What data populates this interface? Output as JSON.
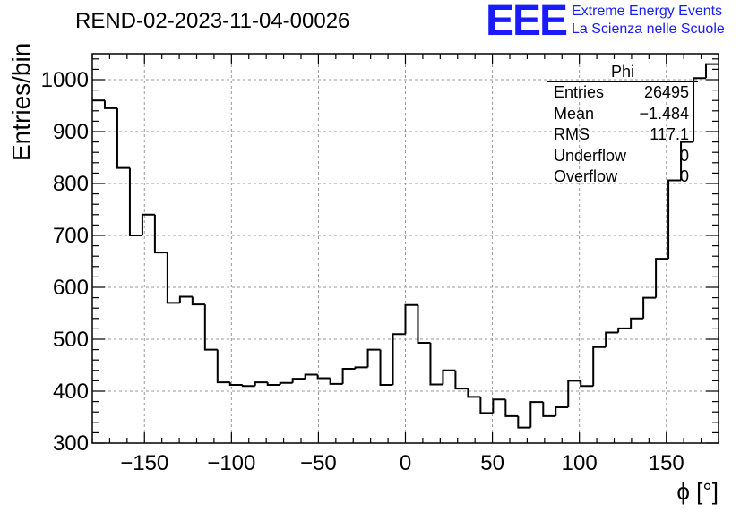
{
  "title": "REND-02-2023-11-04-00026",
  "logo": {
    "mark": "EEE",
    "line1": "Extreme Energy Events",
    "line2": "La Scienza nelle Scuole"
  },
  "stats": {
    "name": "Phi",
    "rows": [
      {
        "label": "Entries",
        "value": "26495"
      },
      {
        "label": "Mean",
        "value": "−1.484"
      },
      {
        "label": "RMS",
        "value": "117.1"
      },
      {
        "label": "Underflow",
        "value": "0"
      },
      {
        "label": "Overflow",
        "value": "0"
      }
    ]
  },
  "chart_data": {
    "type": "bar",
    "style": "step-histogram",
    "xlabel": "ϕ [°]",
    "ylabel": "Entries/bin",
    "xlim": [
      -180,
      180
    ],
    "ylim": [
      300,
      1050
    ],
    "bin_width": 7.2,
    "x_ticks": [
      -150,
      -100,
      -50,
      0,
      50,
      100,
      150
    ],
    "x_tick_labels": [
      "−150",
      "−100",
      "−50",
      "0",
      "50",
      "100",
      "150"
    ],
    "y_ticks": [
      300,
      400,
      500,
      600,
      700,
      800,
      900,
      1000
    ],
    "y_tick_labels": [
      "300",
      "400",
      "500",
      "600",
      "700",
      "800",
      "900",
      "1000"
    ],
    "grid": true,
    "values": [
      960,
      945,
      830,
      700,
      740,
      667,
      570,
      582,
      567,
      480,
      417,
      412,
      410,
      417,
      412,
      416,
      424,
      432,
      425,
      414,
      443,
      446,
      480,
      412,
      510,
      566,
      493,
      413,
      440,
      405,
      389,
      358,
      384,
      352,
      330,
      379,
      352,
      369,
      420,
      410,
      485,
      513,
      521,
      540,
      580,
      655,
      806,
      880,
      1003,
      1030
    ]
  }
}
